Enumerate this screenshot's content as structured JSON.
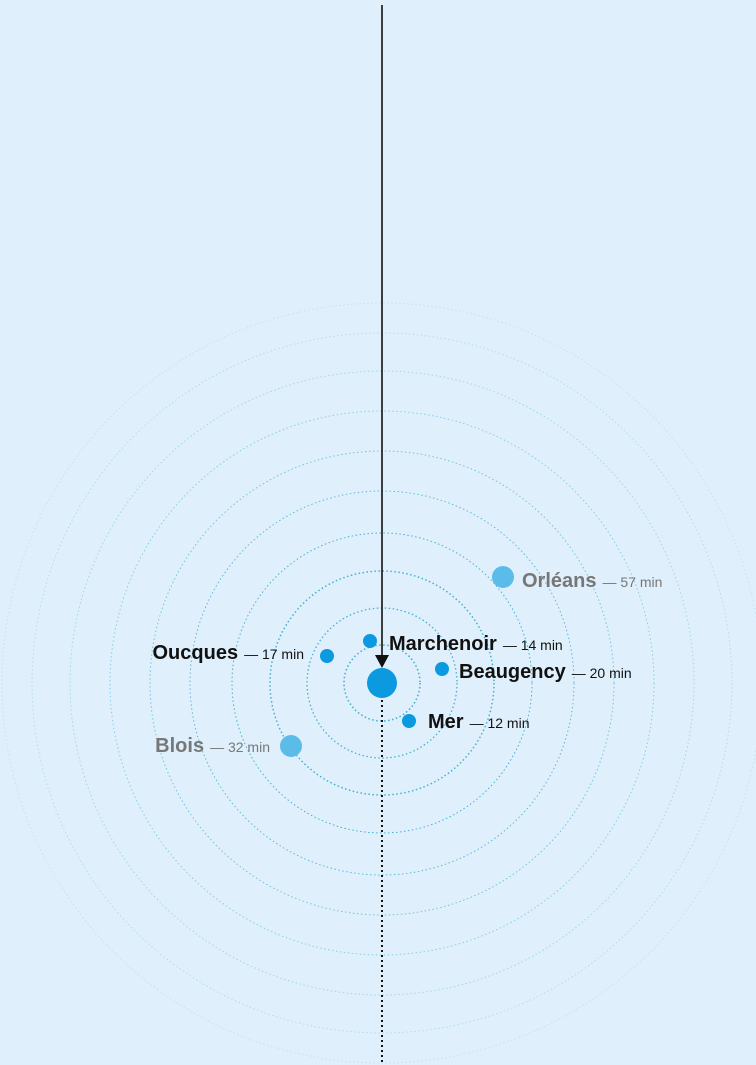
{
  "places": [
    {
      "name": "Orléans",
      "time": "— 57 min"
    },
    {
      "name": "Marchenoir",
      "time": "— 14 min"
    },
    {
      "name": "Oucques",
      "time": "— 17 min"
    },
    {
      "name": "Beaugency",
      "time": "— 20 min"
    },
    {
      "name": "Mer",
      "time": "— 12 min"
    },
    {
      "name": "Blois",
      "time": "— 32 min"
    }
  ]
}
